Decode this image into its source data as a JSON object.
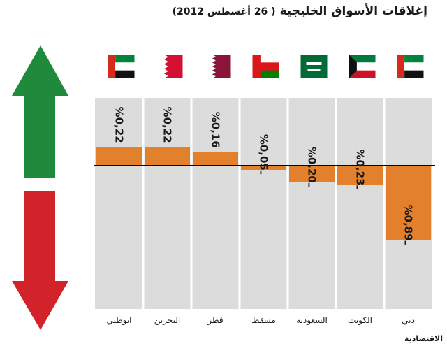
{
  "title": "إغلاقات الأسواق الخليجية",
  "subtitle": "( 26 أغسطس 2012)",
  "source_logo": "الاقتصادية",
  "colors": {
    "bar": "#e3802b",
    "panel": "#dcdcdc",
    "divider": "#ffffff",
    "up_arrow": "#1f8a3b",
    "down_arrow": "#d2232a",
    "zero_line": "#000000"
  },
  "chart_data": {
    "type": "bar",
    "title": "إغلاقات الأسواق الخليجية ( 26 أغسطس 2012)",
    "xlabel": "",
    "ylabel": "",
    "unit": "%",
    "categories": [
      "ابوظبي",
      "البحرين",
      "قطر",
      "مسقط",
      "السعودية",
      "الكويت",
      "دبي"
    ],
    "values": [
      0.22,
      0.22,
      0.16,
      -0.05,
      -0.2,
      -0.23,
      -0.89
    ],
    "value_labels": [
      "%0,22",
      "%0,22",
      "%0,16",
      "%ـ0,05",
      "%ـ0,20",
      "%ـ0,23",
      "%ـ0,89"
    ],
    "flags": [
      "uae-flag-icon",
      "bahrain-flag-icon",
      "qatar-flag-icon",
      "oman-flag-icon",
      "saudi-flag-icon",
      "kuwait-flag-icon",
      "uae-flag-icon"
    ],
    "ylim": [
      -1.1,
      0.9
    ],
    "grid": false,
    "legend": "none"
  }
}
